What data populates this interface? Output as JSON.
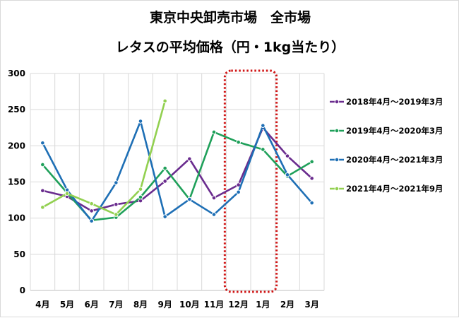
{
  "chart_data": {
    "type": "line",
    "title": "東京中央卸売市場　全市場",
    "subtitle": "レタスの平均価格（円・1kg当たり）",
    "categories": [
      "4月",
      "5月",
      "6月",
      "7月",
      "8月",
      "9月",
      "10月",
      "11月",
      "12月",
      "1月",
      "2月",
      "3月"
    ],
    "ylim": [
      0,
      300
    ],
    "yticks": [
      0,
      50,
      100,
      150,
      200,
      250,
      300
    ],
    "grid": true,
    "legend_position": "right",
    "series": [
      {
        "name": "2018年4月～2019年3月",
        "color": "#6a2c8e",
        "values": [
          138,
          130,
          110,
          119,
          124,
          151,
          182,
          128,
          146,
          225,
          186,
          155
        ]
      },
      {
        "name": "2019年4月～2020年3月",
        "color": "#1fa05a",
        "values": [
          174,
          135,
          97,
          101,
          129,
          169,
          126,
          219,
          205,
          195,
          158,
          178
        ]
      },
      {
        "name": "2020年4月～2021年3月",
        "color": "#1e6fb5",
        "values": [
          204,
          139,
          96,
          149,
          234,
          102,
          126,
          105,
          136,
          228,
          160,
          121
        ]
      },
      {
        "name": "2021年4月～2021年9月",
        "color": "#92d050",
        "values": [
          115,
          134,
          120,
          105,
          140,
          262,
          null,
          null,
          null,
          null,
          null,
          null
        ]
      }
    ],
    "highlight": {
      "from_category": "12月",
      "to_category": "1月",
      "color": "#d01414"
    }
  }
}
